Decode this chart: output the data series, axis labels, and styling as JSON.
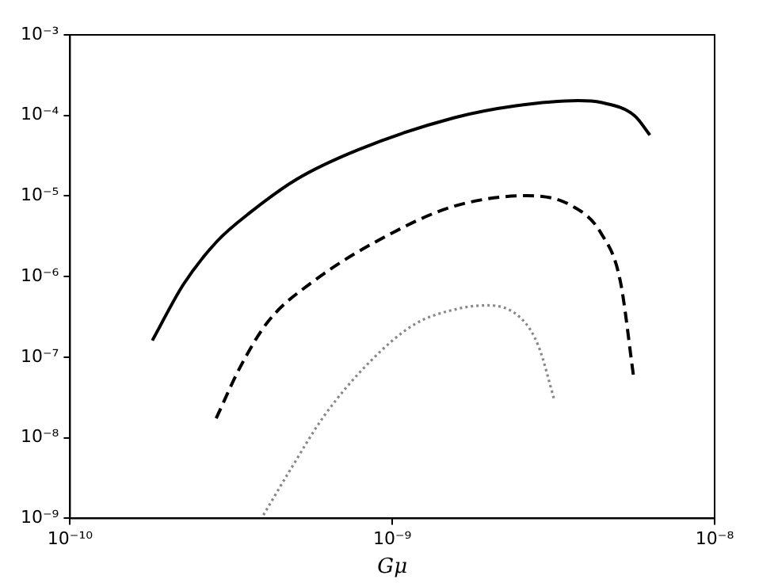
{
  "chart_data": {
    "type": "line",
    "xlabel": "Gμ",
    "log": "xy",
    "grid": false,
    "xlim": [
      1e-10,
      1e-08
    ],
    "ylim": [
      1e-09,
      0.001
    ],
    "xticks": [
      {
        "value": 1e-10,
        "label": "10⁻¹⁰"
      },
      {
        "value": 1e-09,
        "label": "10⁻⁹"
      },
      {
        "value": 1e-08,
        "label": "10⁻⁸"
      }
    ],
    "yticks": [
      {
        "value": 1e-09,
        "label": "10⁻⁹"
      },
      {
        "value": 1e-08,
        "label": "10⁻⁸"
      },
      {
        "value": 1e-07,
        "label": "10⁻⁷"
      },
      {
        "value": 1e-06,
        "label": "10⁻⁶"
      },
      {
        "value": 1e-05,
        "label": "10⁻⁵"
      },
      {
        "value": 0.0001,
        "label": "10⁻⁴"
      },
      {
        "value": 0.001,
        "label": "10⁻³"
      }
    ],
    "series": [
      {
        "color": "#000000",
        "line_style": "solid",
        "x": [
          1.8e-10,
          2.25e-10,
          2.86e-10,
          3.65e-10,
          5.04e-10,
          7.83e-10,
          1.56e-09,
          2.42e-09,
          3.77e-09,
          4.44e-09,
          5.65e-09,
          6.3e-09
        ],
        "values": [
          1.61e-07,
          8.05e-07,
          2.75e-06,
          6.4e-06,
          1.61e-05,
          3.75e-05,
          9.4e-05,
          0.000132,
          0.000153,
          0.000145,
          9.9e-05,
          5.7e-05
        ]
      },
      {
        "color": "#000000",
        "line_style": "dashed",
        "x": [
          2.84e-10,
          3.37e-10,
          4.11e-10,
          5.68e-10,
          9.98e-10,
          1.56e-09,
          2.62e-09,
          3.62e-09,
          4.44e-09,
          5.1e-09,
          5.6e-09
        ],
        "values": [
          1.74e-08,
          7.5e-08,
          2.75e-07,
          8.7e-07,
          3.47e-06,
          7.5e-06,
          1.01e-05,
          7.5e-06,
          3.47e-06,
          8.7e-07,
          5.9e-08
        ]
      },
      {
        "color": "#888888",
        "line_style": "dotted",
        "x": [
          3.98e-10,
          4.83e-10,
          6.15e-10,
          8.5e-10,
          1.17e-09,
          1.62e-09,
          1.98e-09,
          2.52e-09,
          2.84e-09,
          3.18e-09
        ],
        "values": [
          1.1e-09,
          4.04e-09,
          1.88e-08,
          8.7e-08,
          2.55e-07,
          4.04e-07,
          4.4e-07,
          2.98e-07,
          1.38e-07,
          2.98e-08
        ]
      }
    ]
  }
}
